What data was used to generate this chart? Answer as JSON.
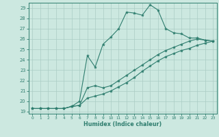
{
  "xlabel": "Humidex (Indice chaleur)",
  "bg_color": "#cce8e0",
  "line_color": "#2e7d6e",
  "grid_color": "#aaccc4",
  "xlim": [
    -0.5,
    23.5
  ],
  "ylim": [
    18.8,
    29.5
  ],
  "yticks": [
    19,
    20,
    21,
    22,
    23,
    24,
    25,
    26,
    27,
    28,
    29
  ],
  "xticks": [
    0,
    1,
    2,
    3,
    4,
    5,
    6,
    7,
    8,
    9,
    10,
    11,
    12,
    13,
    14,
    15,
    16,
    17,
    18,
    19,
    20,
    21,
    22,
    23
  ],
  "lines": [
    {
      "x": [
        0,
        1,
        2,
        3,
        4,
        5,
        6,
        7,
        8,
        9,
        10,
        11,
        12,
        13,
        14,
        15,
        16,
        17,
        18,
        19,
        20,
        21,
        22,
        23
      ],
      "y": [
        19.3,
        19.3,
        19.3,
        19.3,
        19.3,
        19.5,
        20.0,
        24.4,
        23.3,
        25.5,
        26.2,
        27.0,
        28.6,
        28.5,
        28.3,
        29.3,
        28.8,
        27.0,
        26.6,
        26.5,
        26.1,
        26.1,
        25.9,
        25.8
      ]
    },
    {
      "x": [
        0,
        1,
        2,
        3,
        4,
        5,
        6,
        7,
        8,
        9,
        10,
        11,
        12,
        13,
        14,
        15,
        16,
        17,
        18,
        19,
        20,
        21,
        22,
        23
      ],
      "y": [
        19.3,
        19.3,
        19.3,
        19.3,
        19.3,
        19.5,
        19.6,
        21.3,
        21.5,
        21.3,
        21.5,
        22.0,
        22.5,
        23.0,
        23.5,
        24.0,
        24.5,
        24.9,
        25.2,
        25.5,
        25.8,
        26.0,
        25.9,
        25.8
      ]
    },
    {
      "x": [
        0,
        1,
        2,
        3,
        4,
        5,
        6,
        7,
        8,
        9,
        10,
        11,
        12,
        13,
        14,
        15,
        16,
        17,
        18,
        19,
        20,
        21,
        22,
        23
      ],
      "y": [
        19.3,
        19.3,
        19.3,
        19.3,
        19.3,
        19.5,
        19.6,
        20.3,
        20.5,
        20.7,
        21.0,
        21.4,
        21.8,
        22.3,
        22.9,
        23.4,
        23.9,
        24.3,
        24.6,
        24.9,
        25.1,
        25.4,
        25.6,
        25.8
      ]
    }
  ]
}
